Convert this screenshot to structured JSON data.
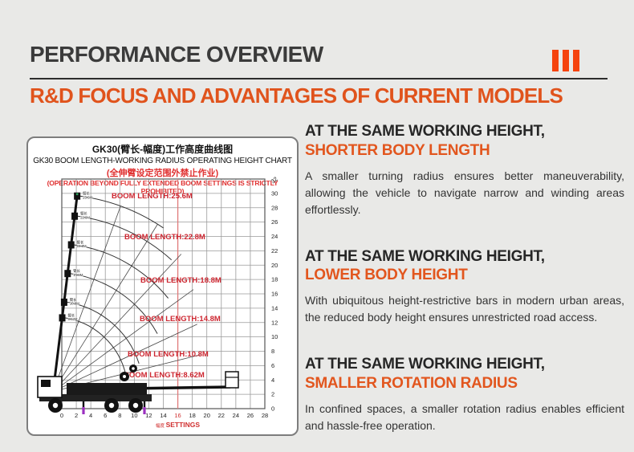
{
  "header": {
    "title": "PERFORMANCE OVERVIEW",
    "section_marker": "III",
    "subtitle": "R&D FOCUS AND ADVANTAGES OF CURRENT MODELS"
  },
  "colors": {
    "page_background": "#e9e9e7",
    "title_dark": "#3b3b3b",
    "accent_orange": "#e0531c",
    "marker_red_orange": "#f5430e",
    "chart_label_red": "#cd2630",
    "chart_warning_red": "#e03030",
    "chart_highlight_line": "#e07a7a",
    "grid_gray": "#9a9a9a"
  },
  "chart_data": {
    "type": "line",
    "title_cn": "GK30(臂长-幅度)工作高度曲线图",
    "title_en": "GK30 BOOM LENGTH-WORKING RADIUS OPERATING HEIGHT CHART",
    "warning_cn": "(全伸臂设定范围外禁止作业)",
    "warning_en": "(OPERATION BEYOND FULLY EXTENDED BOOM SETTINGS IS STRICTLY PROHIBITED)",
    "x_axis": {
      "label_cn": "幅度",
      "label_en": "SETTINGS",
      "min": 0,
      "max": 28,
      "step": 2,
      "highlight_value": 16
    },
    "y_axis": {
      "min": 0,
      "max": 32,
      "step": 2,
      "side": "right"
    },
    "grid": true,
    "series": [
      {
        "label": "BOOM LENGTH:25.6M",
        "boom_length_m": 25.6,
        "tip_label_cn": "臂长",
        "tip_label_value": "25.6M"
      },
      {
        "label": "BOOM LENGTH:22.8M",
        "boom_length_m": 22.8,
        "tip_label_cn": "臂长",
        "tip_label_value": "22.8M"
      },
      {
        "label": "BOOM LENGTH:18.8M",
        "boom_length_m": 18.8,
        "tip_label_cn": "臂长",
        "tip_label_value": "18.8M"
      },
      {
        "label": "BOOM LENGTH:14.8M",
        "boom_length_m": 14.8,
        "tip_label_cn": "臂长",
        "tip_label_value": "14.8M"
      },
      {
        "label": "BOOM LENGTH:10.8M",
        "boom_length_m": 10.8,
        "tip_label_cn": "臂长",
        "tip_label_value": "10.8M"
      },
      {
        "label": "BOOM LENGTH:8.62M",
        "boom_length_m": 8.62,
        "tip_label_cn": "臂长",
        "tip_label_value": "8.62M"
      }
    ]
  },
  "sections": [
    {
      "heading": "AT THE SAME WORKING HEIGHT,",
      "subheading": "SHORTER BODY LENGTH",
      "body": "A smaller turning radius ensures better maneuverability, allowing the vehicle to navigate narrow and winding areas effortlessly."
    },
    {
      "heading": "AT THE SAME WORKING HEIGHT,",
      "subheading": "LOWER BODY HEIGHT",
      "body": "With ubiquitous height-restrictive bars in modern urban areas, the reduced body height ensures unrestricted road access."
    },
    {
      "heading": "AT THE SAME WORKING HEIGHT,",
      "subheading": "SMALLER ROTATION RADIUS",
      "body": "In confined spaces, a smaller rotation radius enables efficient and hassle-free operation."
    }
  ]
}
